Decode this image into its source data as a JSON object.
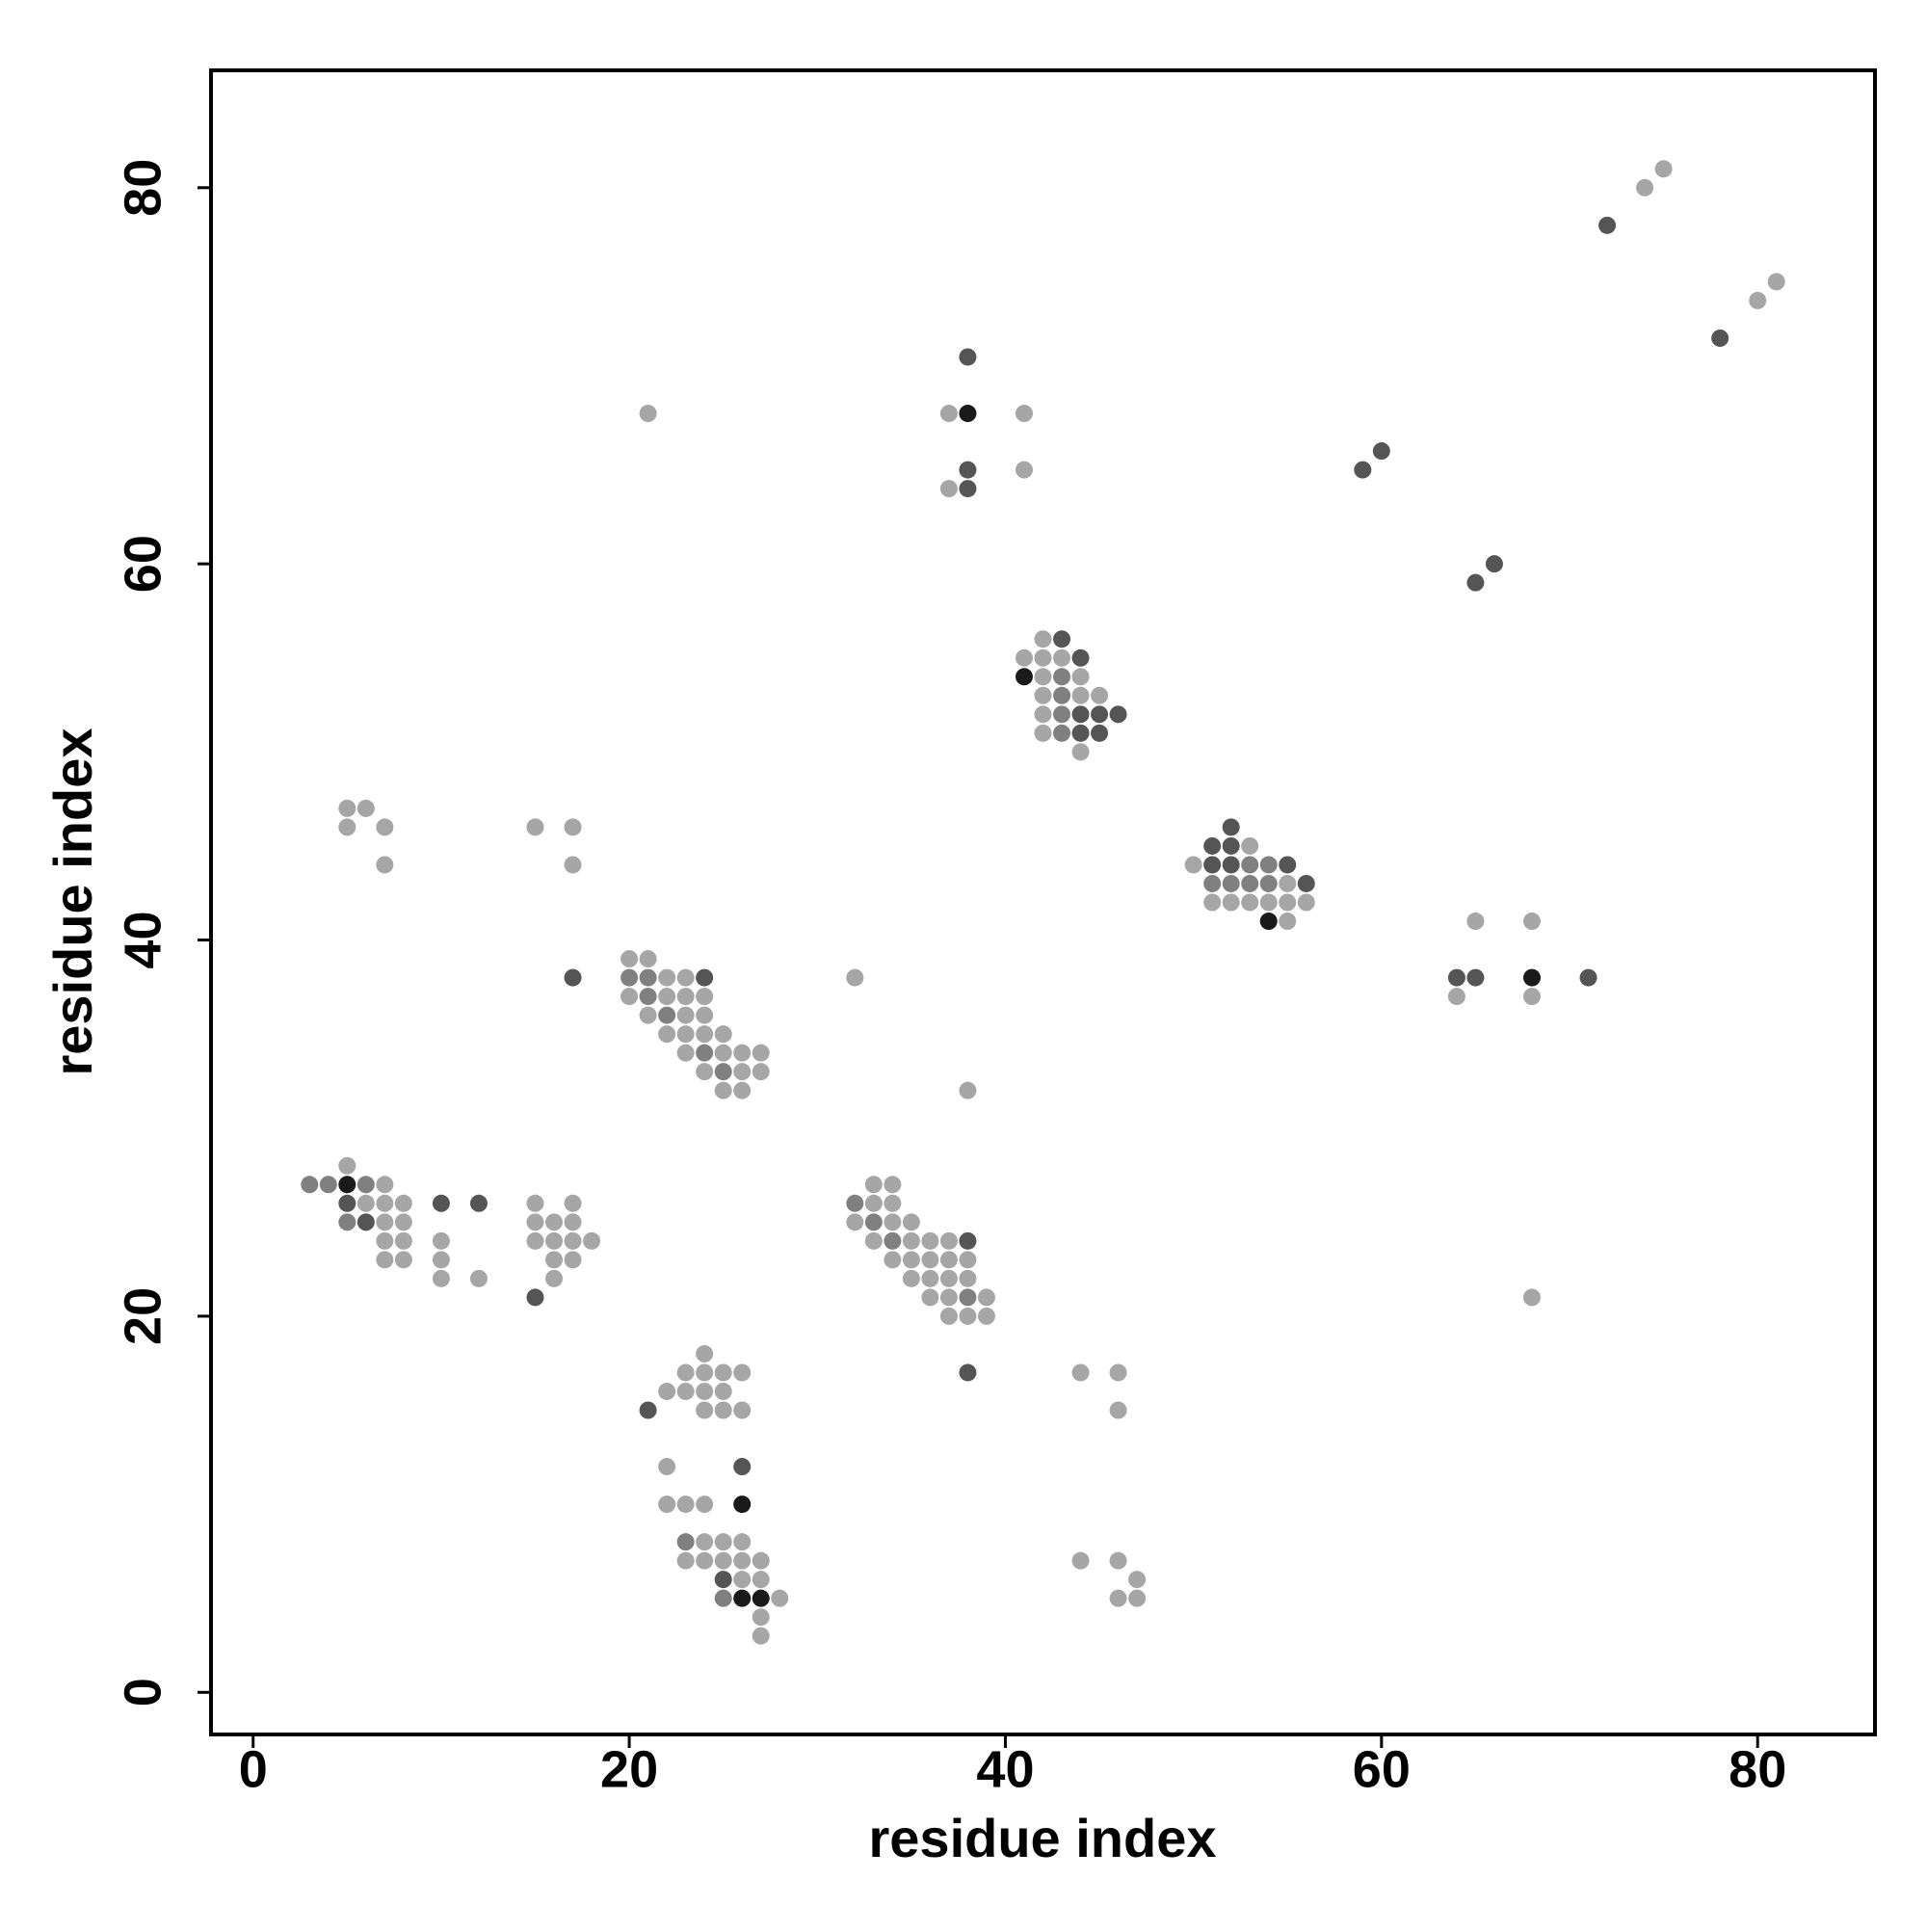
{
  "chart_data": {
    "type": "scatter",
    "x_label": "residue index",
    "y_label": "residue index",
    "xlim": [
      -2.24,
      86.24
    ],
    "ylim": [
      -2.24,
      86.24
    ],
    "xticks": [
      0,
      20,
      40,
      60,
      80
    ],
    "yticks": [
      0,
      20,
      40,
      60,
      80
    ],
    "series": [
      {
        "color": "#a6a6a6",
        "x": [
          74,
          75,
          80,
          81,
          37,
          41,
          41,
          37,
          21,
          42,
          41,
          42,
          43,
          42,
          44,
          42,
          44,
          45,
          42,
          42,
          44,
          53,
          50,
          55,
          51,
          52,
          53,
          54,
          55,
          56,
          55,
          65,
          68,
          64,
          68,
          68,
          5,
          6,
          5,
          7,
          7,
          15,
          17,
          17,
          20,
          21,
          22,
          23,
          20,
          22,
          23,
          24,
          21,
          23,
          24,
          22,
          23,
          24,
          25,
          23,
          25,
          26,
          27,
          24,
          26,
          27,
          25,
          26,
          32,
          38,
          5,
          7,
          6,
          7,
          8,
          7,
          8,
          7,
          8,
          10,
          7,
          8,
          10,
          10,
          12,
          15,
          17,
          15,
          16,
          17,
          15,
          16,
          17,
          18,
          16,
          17,
          16,
          33,
          34,
          33,
          34,
          32,
          34,
          35,
          33,
          35,
          36,
          37,
          34,
          35,
          36,
          37,
          38,
          35,
          36,
          37,
          38,
          36,
          37,
          39,
          37,
          38,
          39,
          44,
          46,
          46,
          24,
          23,
          24,
          25,
          26,
          22,
          23,
          24,
          25,
          24,
          25,
          26,
          22,
          22,
          23,
          24,
          24,
          25,
          26,
          23,
          24,
          25,
          26,
          27,
          26,
          27,
          28,
          27,
          27,
          44,
          46,
          47,
          46,
          47
        ],
        "y": [
          80,
          81,
          74,
          75,
          68,
          68,
          65,
          64,
          68,
          56,
          55,
          55,
          55,
          54,
          54,
          53,
          53,
          53,
          52,
          51,
          50,
          45,
          44,
          43,
          42,
          42,
          42,
          42,
          42,
          42,
          41,
          41,
          41,
          37,
          37,
          21,
          47,
          47,
          46,
          46,
          44,
          46,
          46,
          44,
          39,
          39,
          38,
          38,
          37,
          37,
          37,
          37,
          36,
          36,
          36,
          35,
          35,
          35,
          35,
          34,
          34,
          34,
          34,
          33,
          33,
          33,
          32,
          32,
          38,
          32,
          28,
          27,
          26,
          26,
          26,
          25,
          25,
          24,
          24,
          24,
          23,
          23,
          23,
          22,
          22,
          26,
          26,
          25,
          25,
          25,
          24,
          24,
          24,
          24,
          23,
          23,
          22,
          27,
          27,
          26,
          26,
          25,
          25,
          25,
          24,
          24,
          24,
          24,
          23,
          23,
          23,
          23,
          23,
          22,
          22,
          22,
          22,
          21,
          21,
          21,
          20,
          20,
          20,
          17,
          17,
          15,
          18,
          17,
          17,
          17,
          17,
          16,
          16,
          16,
          16,
          15,
          15,
          15,
          12,
          10,
          10,
          10,
          8,
          8,
          8,
          7,
          7,
          7,
          7,
          7,
          6,
          6,
          5,
          4,
          3,
          7,
          7,
          6,
          5,
          5
        ]
      },
      {
        "color": "#808080",
        "x": [
          43,
          43,
          43,
          43,
          53,
          54,
          51,
          52,
          53,
          54,
          20,
          21,
          21,
          22,
          24,
          25,
          3,
          4,
          6,
          5,
          32,
          33,
          34,
          38,
          23,
          25
        ],
        "y": [
          54,
          53,
          52,
          51,
          44,
          44,
          43,
          43,
          43,
          43,
          38,
          38,
          37,
          36,
          34,
          33,
          27,
          27,
          27,
          25,
          26,
          25,
          24,
          21,
          8,
          5
        ]
      },
      {
        "color": "#555555",
        "x": [
          72,
          78,
          38,
          38,
          38,
          59,
          60,
          65,
          66,
          43,
          44,
          44,
          45,
          46,
          44,
          45,
          52,
          51,
          52,
          51,
          52,
          55,
          56,
          64,
          65,
          71,
          17,
          24,
          5,
          10,
          12,
          6,
          15,
          38,
          38,
          21,
          26,
          25
        ],
        "y": [
          78,
          72,
          71,
          65,
          64,
          65,
          66,
          59,
          60,
          56,
          55,
          52,
          52,
          52,
          51,
          51,
          46,
          45,
          45,
          44,
          44,
          44,
          43,
          38,
          38,
          38,
          38,
          38,
          26,
          26,
          26,
          25,
          21,
          24,
          17,
          15,
          12,
          6
        ]
      },
      {
        "color": "#1a1a1a",
        "x": [
          38,
          41,
          54,
          68,
          5,
          26,
          26,
          27
        ],
        "y": [
          68,
          54,
          41,
          38,
          27,
          10,
          5,
          5
        ]
      }
    ]
  }
}
